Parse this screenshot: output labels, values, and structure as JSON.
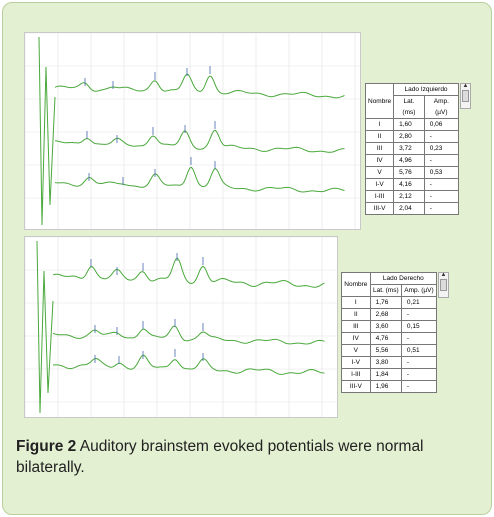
{
  "figure": {
    "label": "Figure 2",
    "caption": "Auditory brainstem evoked potentials were normal bilaterally."
  },
  "colors": {
    "trace": "#4aa83c",
    "panel_bg": "#e4f0d2"
  },
  "left_table": {
    "title": "Lado Izquierdo",
    "name_header": "Nombre",
    "lat_header": "Lat. (ms)",
    "amp_header": "Amp. (µV)",
    "rows": [
      {
        "name": "I",
        "lat": "1,60",
        "amp": "0,06"
      },
      {
        "name": "II",
        "lat": "2,80",
        "amp": "-"
      },
      {
        "name": "III",
        "lat": "3,72",
        "amp": "0,23"
      },
      {
        "name": "IV",
        "lat": "4,96",
        "amp": "-"
      },
      {
        "name": "V",
        "lat": "5,76",
        "amp": "0,53"
      },
      {
        "name": "I-V",
        "lat": "4,16",
        "amp": "-"
      },
      {
        "name": "I-III",
        "lat": "2,12",
        "amp": "-"
      },
      {
        "name": "III-V",
        "lat": "2,04",
        "amp": "-"
      }
    ]
  },
  "right_table": {
    "title": "Lado Derecho",
    "name_header": "Nombre",
    "lat_header": "Lat. (ms)",
    "amp_header": "Amp. (µV)",
    "rows": [
      {
        "name": "I",
        "lat": "1,76",
        "amp": "0,21"
      },
      {
        "name": "II",
        "lat": "2,68",
        "amp": "-"
      },
      {
        "name": "III",
        "lat": "3,60",
        "amp": "0,15"
      },
      {
        "name": "IV",
        "lat": "4,76",
        "amp": "-"
      },
      {
        "name": "V",
        "lat": "5,56",
        "amp": "0,51"
      },
      {
        "name": "I-V",
        "lat": "3,80",
        "amp": "-"
      },
      {
        "name": "I-III",
        "lat": "1,84",
        "amp": "-"
      },
      {
        "name": "III-V",
        "lat": "1,96",
        "amp": "-"
      }
    ]
  }
}
